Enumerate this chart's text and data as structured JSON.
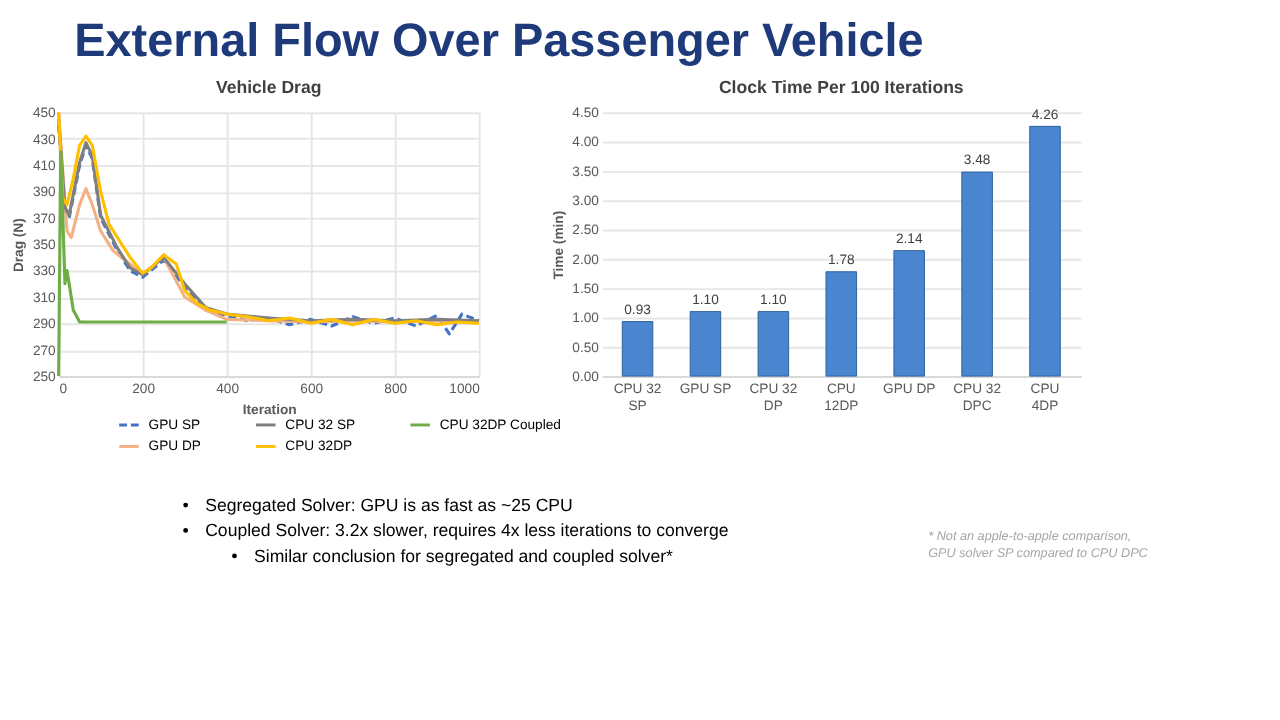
{
  "chart_data": [
    {
      "type": "other",
      "title": "External Flow Over Passenger Vehicle"
    },
    {
      "type": "line",
      "title": "Vehicle Drag",
      "xlabel": "Iteration",
      "ylabel": "Drag (N)",
      "xlim": [
        0,
        1000
      ],
      "xticks": [
        0,
        200,
        400,
        600,
        800,
        1000
      ],
      "ylim": [
        250,
        450
      ],
      "yticks": [
        250,
        270,
        290,
        310,
        330,
        350,
        370,
        390,
        410,
        430,
        450
      ],
      "grid": true,
      "legend": "bottom",
      "marker": "none",
      "series": [
        {
          "name": "GPU SP",
          "color": "#4472c4",
          "line_style": "dashed",
          "x": [
            0,
            15,
            25,
            50,
            65,
            80,
            100,
            140,
            170,
            200,
            250,
            300,
            350,
            400,
            450,
            500,
            550,
            600,
            650,
            700,
            750,
            800,
            850,
            900,
            930,
            960,
            1000
          ],
          "values": [
            440,
            375,
            370,
            410,
            425,
            415,
            370,
            345,
            330,
            325,
            338,
            318,
            300,
            296,
            292,
            294,
            289,
            293,
            288,
            295,
            290,
            294,
            288,
            296,
            282,
            297,
            292
          ]
        },
        {
          "name": "GPU DP",
          "color": "#f4b183",
          "line_style": "solid",
          "x": [
            0,
            20,
            30,
            50,
            65,
            80,
            100,
            130,
            170,
            200,
            250,
            300,
            350,
            400,
            500,
            600,
            700,
            800,
            900,
            1000
          ],
          "values": [
            450,
            360,
            355,
            380,
            392,
            380,
            360,
            345,
            335,
            327,
            340,
            310,
            300,
            293,
            292,
            291,
            292,
            291,
            292,
            291
          ]
        },
        {
          "name": "CPU 32 SP",
          "color": "#7f7f7f",
          "line_style": "solid",
          "x": [
            0,
            15,
            25,
            50,
            65,
            80,
            100,
            140,
            170,
            200,
            250,
            300,
            350,
            400,
            500,
            600,
            700,
            800,
            900,
            1000
          ],
          "values": [
            445,
            378,
            372,
            412,
            427,
            417,
            372,
            347,
            332,
            327,
            340,
            320,
            302,
            297,
            294,
            292,
            293,
            292,
            293,
            292
          ]
        },
        {
          "name": "CPU 32DP",
          "color": "#ffc000",
          "line_style": "solid",
          "x": [
            0,
            10,
            20,
            35,
            50,
            65,
            80,
            100,
            120,
            150,
            170,
            200,
            220,
            250,
            280,
            300,
            330,
            360,
            400,
            450,
            500,
            550,
            600,
            650,
            700,
            750,
            800,
            850,
            900,
            950,
            1000
          ],
          "values": [
            450,
            385,
            380,
            400,
            425,
            432,
            425,
            390,
            365,
            350,
            340,
            328,
            332,
            342,
            335,
            315,
            305,
            300,
            297,
            295,
            292,
            294,
            290,
            293,
            289,
            293,
            290,
            292,
            289,
            291,
            290
          ]
        },
        {
          "name": "CPU 32DP Coupled",
          "color": "#70ad47",
          "line_style": "solid",
          "x": [
            0,
            5,
            15,
            20,
            35,
            50,
            100,
            200,
            300,
            400
          ],
          "values": [
            250,
            420,
            320,
            330,
            300,
            291,
            291,
            291,
            291,
            291
          ]
        }
      ]
    },
    {
      "type": "bar",
      "title": "Clock Time Per 100 Iterations",
      "ylabel": "Time (min)",
      "categories": [
        "CPU 32 SP",
        "GPU SP",
        "CPU 32 DP",
        "CPU 12DP",
        "GPU DP",
        "CPU 32 DPC",
        "CPU 4DP"
      ],
      "values": [
        0.93,
        1.1,
        1.1,
        1.78,
        2.14,
        3.48,
        4.26
      ],
      "value_labels": [
        "0.93",
        "1.10",
        "1.10",
        "1.78",
        "2.14",
        "3.48",
        "4.26"
      ],
      "color": "#4a86d0",
      "ylim": [
        0,
        4.5
      ],
      "yticks": [
        {
          "value": 0,
          "label": "0.00"
        },
        {
          "value": 0.5,
          "label": "0.50"
        },
        {
          "value": 1,
          "label": "1.00"
        },
        {
          "value": 1.5,
          "label": "1.50"
        },
        {
          "value": 2,
          "label": "2.00"
        },
        {
          "value": 2.5,
          "label": "2.50"
        },
        {
          "value": 3,
          "label": "3.00"
        },
        {
          "value": 3.5,
          "label": "3.50"
        },
        {
          "value": 4,
          "label": "4.00"
        },
        {
          "value": 4.5,
          "label": "4.50"
        }
      ],
      "grid": "y"
    },
    {
      "type": "other",
      "annotations": [
        "Segregated Solver: GPU is as fast as ~25 CPU",
        "Coupled Solver: 3.2x slower, requires 4x less iterations to converge",
        "Similar conclusion for segregated and coupled solver*",
        "* Not an apple-to-apple comparison, GPU solver SP compared to CPU DPC"
      ]
    }
  ]
}
